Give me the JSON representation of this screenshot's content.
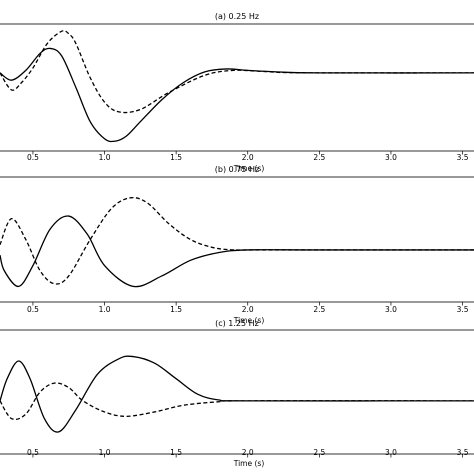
{
  "chart_data": [
    {
      "type": "line",
      "title": "(a) 0.25 Hz",
      "xlabel": "Time (s)",
      "ylabel": "",
      "xlim": [
        0.27,
        3.58
      ],
      "ylim": [
        -1.6,
        1.0
      ],
      "xticks": [
        0.5,
        1.0,
        1.5,
        2.0,
        2.5,
        3.0,
        3.5
      ],
      "xtick_labels": [
        "0.5",
        "1.0",
        "1.5",
        "2.0",
        "2.5",
        "3.0",
        "3.5"
      ],
      "grid": false,
      "series": [
        {
          "style": "solid",
          "color": "#000000",
          "x": [
            0.27,
            0.35,
            0.45,
            0.55,
            0.62,
            0.7,
            0.8,
            0.9,
            1.0,
            1.07,
            1.15,
            1.25,
            1.4,
            1.55,
            1.7,
            1.85,
            2.0,
            2.2,
            2.5,
            3.58
          ],
          "y": [
            0.0,
            -0.15,
            0.05,
            0.4,
            0.5,
            0.35,
            -0.3,
            -1.0,
            -1.35,
            -1.4,
            -1.3,
            -1.0,
            -0.55,
            -0.2,
            0.02,
            0.08,
            0.05,
            0.02,
            0.0,
            0.0
          ]
        },
        {
          "style": "dashed",
          "color": "#000000",
          "x": [
            0.27,
            0.35,
            0.42,
            0.5,
            0.6,
            0.7,
            0.75,
            0.8,
            0.9,
            1.0,
            1.1,
            1.25,
            1.45,
            1.7,
            1.9,
            2.1,
            2.4,
            3.58
          ],
          "y": [
            0.0,
            -0.35,
            -0.2,
            0.1,
            0.6,
            0.85,
            0.8,
            0.6,
            -0.1,
            -0.6,
            -0.8,
            -0.75,
            -0.4,
            -0.05,
            0.05,
            0.03,
            0.0,
            0.0
          ]
        }
      ]
    },
    {
      "type": "line",
      "title": "(b) 0.75 Hz",
      "xlabel": "Time (s)",
      "ylabel": "",
      "xlim": [
        0.27,
        3.58
      ],
      "ylim": [
        -1.0,
        1.4
      ],
      "xticks": [
        0.5,
        1.0,
        1.5,
        2.0,
        2.5,
        3.0,
        3.5
      ],
      "xtick_labels": [
        "0.5",
        "1.0",
        "1.5",
        "2.0",
        "2.5",
        "3.0",
        "3.5"
      ],
      "grid": false,
      "series": [
        {
          "style": "solid",
          "color": "#000000",
          "x": [
            0.27,
            0.3,
            0.4,
            0.5,
            0.62,
            0.75,
            0.88,
            1.0,
            1.2,
            1.4,
            1.6,
            1.8,
            2.0,
            2.5,
            3.58
          ],
          "y": [
            -0.1,
            -0.4,
            -0.7,
            -0.3,
            0.4,
            0.65,
            0.3,
            -0.3,
            -0.7,
            -0.5,
            -0.2,
            -0.05,
            0.0,
            0.0,
            0.0
          ]
        },
        {
          "style": "dashed",
          "color": "#000000",
          "x": [
            0.27,
            0.35,
            0.45,
            0.55,
            0.65,
            0.75,
            0.9,
            1.05,
            1.18,
            1.3,
            1.45,
            1.6,
            1.75,
            1.9,
            2.1,
            3.58
          ],
          "y": [
            0.1,
            0.6,
            0.2,
            -0.4,
            -0.65,
            -0.5,
            0.2,
            0.8,
            1.0,
            0.9,
            0.5,
            0.2,
            0.05,
            0.0,
            0.0,
            0.0
          ]
        }
      ]
    },
    {
      "type": "line",
      "title": "(c) 1.25 Hz",
      "xlabel": "Time (s)",
      "ylabel": "",
      "xlim": [
        0.27,
        3.58
      ],
      "ylim": [
        -1.2,
        1.6
      ],
      "xticks": [
        0.5,
        1.0,
        1.5,
        2.0,
        2.5,
        3.0,
        3.5
      ],
      "xtick_labels": [
        "0.5",
        "1.0",
        "1.5",
        "2.0",
        "2.5",
        "3.0",
        "3.5"
      ],
      "grid": false,
      "series": [
        {
          "style": "solid",
          "color": "#000000",
          "x": [
            0.27,
            0.32,
            0.4,
            0.48,
            0.58,
            0.68,
            0.8,
            0.95,
            1.1,
            1.2,
            1.35,
            1.5,
            1.65,
            1.8,
            2.0,
            3.58
          ],
          "y": [
            0.0,
            0.5,
            0.9,
            0.5,
            -0.4,
            -0.7,
            -0.2,
            0.6,
            0.95,
            1.0,
            0.85,
            0.5,
            0.15,
            0.02,
            0.0,
            0.0
          ]
        },
        {
          "style": "dashed",
          "color": "#000000",
          "x": [
            0.27,
            0.35,
            0.45,
            0.55,
            0.65,
            0.75,
            0.85,
            1.0,
            1.15,
            1.35,
            1.55,
            1.8,
            2.0,
            3.58
          ],
          "y": [
            0.0,
            -0.4,
            -0.3,
            0.2,
            0.4,
            0.3,
            0.0,
            -0.25,
            -0.35,
            -0.25,
            -0.1,
            -0.02,
            0.0,
            0.0
          ]
        }
      ]
    }
  ]
}
